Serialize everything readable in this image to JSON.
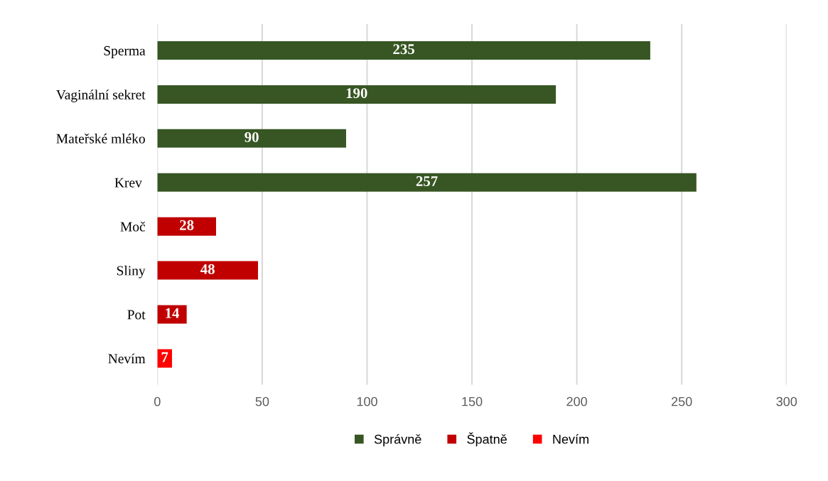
{
  "chart_data": {
    "type": "bar",
    "orientation": "horizontal",
    "categories": [
      "Sperma",
      "Vaginální sekret",
      "Mateřské mléko",
      "Krev ",
      "Moč",
      "Sliny",
      "Pot",
      "Nevím"
    ],
    "series": [
      {
        "name": "Správně",
        "color": "#375623",
        "values": [
          235,
          190,
          90,
          257,
          null,
          null,
          null,
          null
        ]
      },
      {
        "name": "Špatně",
        "color": "#c00000",
        "values": [
          null,
          null,
          null,
          null,
          28,
          48,
          14,
          null
        ]
      },
      {
        "name": "Nevím",
        "color": "#ff0000",
        "values": [
          null,
          null,
          null,
          null,
          null,
          null,
          null,
          7
        ]
      }
    ],
    "xlim": [
      0,
      300
    ],
    "xticks": [
      0,
      50,
      100,
      150,
      200,
      250,
      300
    ],
    "grid": "x",
    "legend": "bottom",
    "data_labels": true
  }
}
